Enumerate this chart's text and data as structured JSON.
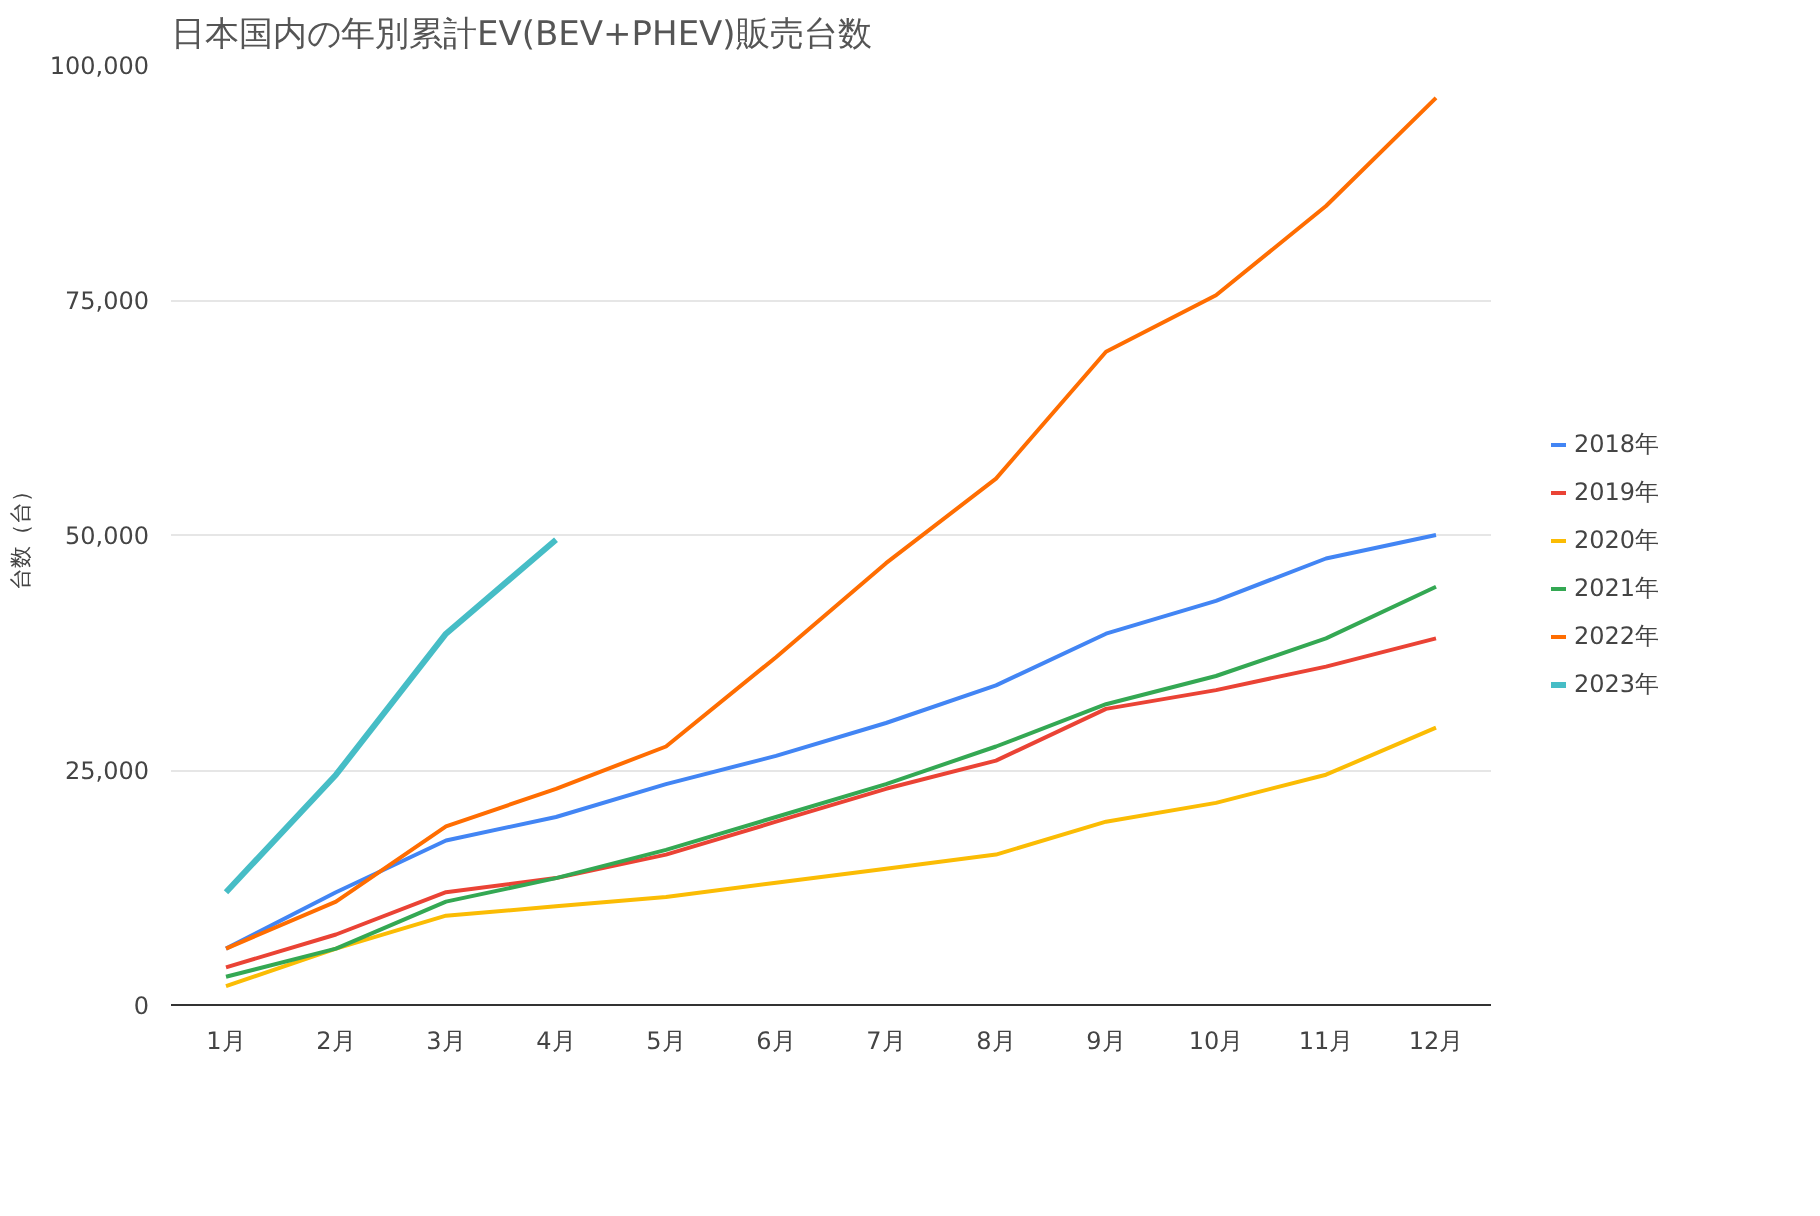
{
  "chart_data": {
    "type": "line",
    "title": "日本国内の年別累計EV(BEV+PHEV)販売台数",
    "ylabel": "台数（台）",
    "categories": [
      "1月",
      "2月",
      "3月",
      "4月",
      "5月",
      "6月",
      "7月",
      "8月",
      "9月",
      "10月",
      "11月",
      "12月"
    ],
    "series": [
      {
        "name": "2018年",
        "color": "#4285f4",
        "values": [
          6000,
          12000,
          17500,
          20000,
          23500,
          26500,
          30000,
          34000,
          39500,
          43000,
          47500,
          50000
        ]
      },
      {
        "name": "2019年",
        "color": "#ea4335",
        "values": [
          4000,
          7500,
          12000,
          13500,
          16000,
          19500,
          23000,
          26000,
          31500,
          33500,
          36000,
          39000
        ]
      },
      {
        "name": "2020年",
        "color": "#fbbc04",
        "values": [
          2000,
          6000,
          9500,
          10500,
          11500,
          13000,
          14500,
          16000,
          19500,
          21500,
          24500,
          29500
        ]
      },
      {
        "name": "2021年",
        "color": "#34a853",
        "values": [
          3000,
          6000,
          11000,
          13500,
          16500,
          20000,
          23500,
          27500,
          32000,
          35000,
          39000,
          44500
        ]
      },
      {
        "name": "2022年",
        "color": "#ff6d01",
        "values": [
          6000,
          11000,
          19000,
          23000,
          27500,
          37000,
          47000,
          56000,
          69500,
          75500,
          85000,
          96500
        ]
      },
      {
        "name": "2023年",
        "color": "#46bdc6",
        "values": [
          12000,
          24500,
          39500,
          49500,
          null,
          null,
          null,
          null,
          null,
          null,
          null,
          null
        ]
      }
    ],
    "ylim": [
      0,
      100000
    ],
    "yticks": [
      0,
      {
        "value": 25000,
        "label": "25,000"
      },
      {
        "value": 50000,
        "label": "50,000"
      },
      {
        "value": 75000,
        "label": "75,000"
      },
      {
        "value": 100000,
        "label": "100,000"
      }
    ],
    "grid": "y",
    "legend": "right",
    "line_style": "solid",
    "marker": "none"
  }
}
